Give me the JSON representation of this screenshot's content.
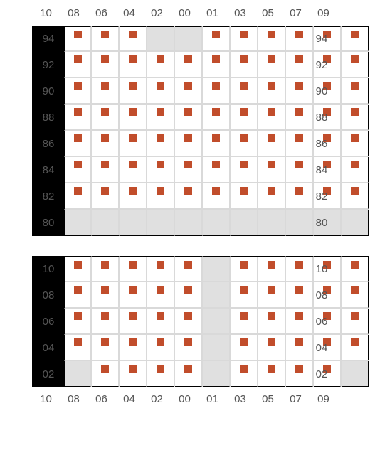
{
  "layout": {
    "columns": [
      "10",
      "08",
      "06",
      "04",
      "02",
      "00",
      "01",
      "03",
      "05",
      "07",
      "09"
    ],
    "seat_color": "#c14d2b",
    "empty_bg": "#e0e0e0",
    "cell_bg": "#ffffff",
    "grid_color": "#d9d9d9",
    "border_color": "#000000",
    "top_col_labels": true,
    "bottom_col_labels": true
  },
  "blocks": [
    {
      "name": "upper-block",
      "rows": [
        {
          "label": "94",
          "cells": [
            1,
            1,
            1,
            0,
            0,
            1,
            1,
            1,
            1,
            1,
            1
          ]
        },
        {
          "label": "92",
          "cells": [
            1,
            1,
            1,
            1,
            1,
            1,
            1,
            1,
            1,
            1,
            1
          ]
        },
        {
          "label": "90",
          "cells": [
            1,
            1,
            1,
            1,
            1,
            1,
            1,
            1,
            1,
            1,
            1
          ]
        },
        {
          "label": "88",
          "cells": [
            1,
            1,
            1,
            1,
            1,
            1,
            1,
            1,
            1,
            1,
            1
          ]
        },
        {
          "label": "86",
          "cells": [
            1,
            1,
            1,
            1,
            1,
            1,
            1,
            1,
            1,
            1,
            1
          ]
        },
        {
          "label": "84",
          "cells": [
            1,
            1,
            1,
            1,
            1,
            1,
            1,
            1,
            1,
            1,
            1
          ]
        },
        {
          "label": "82",
          "cells": [
            1,
            1,
            1,
            1,
            1,
            1,
            1,
            1,
            1,
            1,
            1
          ]
        },
        {
          "label": "80",
          "cells": [
            0,
            0,
            0,
            0,
            0,
            0,
            0,
            0,
            0,
            0,
            0
          ]
        }
      ]
    },
    {
      "name": "lower-block",
      "rows": [
        {
          "label": "10",
          "cells": [
            1,
            1,
            1,
            1,
            1,
            0,
            1,
            1,
            1,
            1,
            1
          ]
        },
        {
          "label": "08",
          "cells": [
            1,
            1,
            1,
            1,
            1,
            0,
            1,
            1,
            1,
            1,
            1
          ]
        },
        {
          "label": "06",
          "cells": [
            1,
            1,
            1,
            1,
            1,
            0,
            1,
            1,
            1,
            1,
            1
          ]
        },
        {
          "label": "04",
          "cells": [
            1,
            1,
            1,
            1,
            1,
            0,
            1,
            1,
            1,
            1,
            1
          ]
        },
        {
          "label": "02",
          "cells": [
            0,
            1,
            1,
            1,
            1,
            0,
            1,
            1,
            1,
            1,
            0
          ]
        }
      ]
    }
  ]
}
